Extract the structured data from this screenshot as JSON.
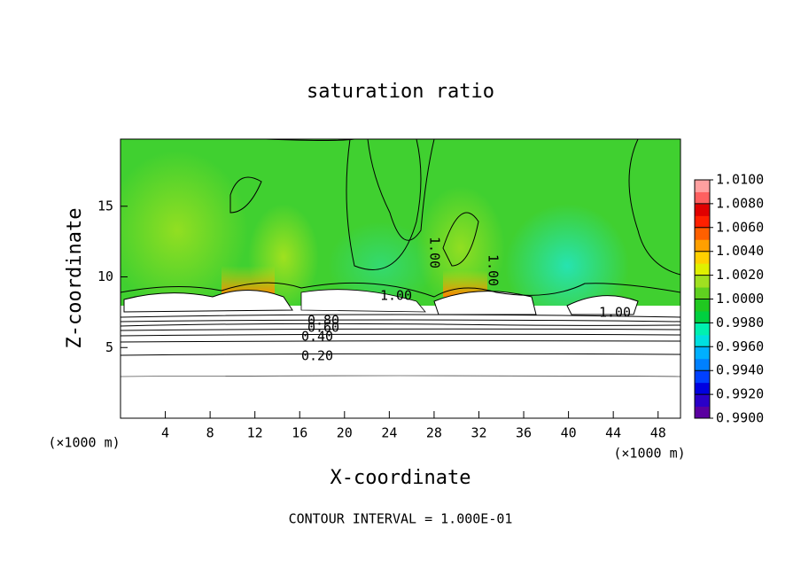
{
  "chart_data": {
    "type": "contour",
    "title": "saturation ratio",
    "x_label": "X-coordinate",
    "y_label": "Z-coordinate",
    "x_unit_label": "(×1000 m)",
    "x_unit_label_right": "(×1000 m)",
    "footer": "CONTOUR INTERVAL = 1.000E-01",
    "xlim": [
      0,
      50
    ],
    "xticks": [
      4,
      8,
      12,
      16,
      20,
      24,
      28,
      32,
      36,
      40,
      44,
      48
    ],
    "ylim": [
      0,
      19.75
    ],
    "yticks": [
      5,
      10,
      15
    ],
    "contour_labels": [
      "1.00",
      "1.00",
      "1.00",
      "1.00",
      "0.80",
      "0.60",
      "0.40",
      "0.20"
    ],
    "colorbar": {
      "lim": [
        0.99,
        1.01
      ],
      "ticks": [
        {
          "value": 0.99,
          "label": "0.9900"
        },
        {
          "value": 0.992,
          "label": "0.9920"
        },
        {
          "value": 0.994,
          "label": "0.9940"
        },
        {
          "value": 0.996,
          "label": "0.9960"
        },
        {
          "value": 0.998,
          "label": "0.9980"
        },
        {
          "value": 1.0,
          "label": "1.0000"
        },
        {
          "value": 1.002,
          "label": "1.0020"
        },
        {
          "value": 1.004,
          "label": "1.0040"
        },
        {
          "value": 1.006,
          "label": "1.0060"
        },
        {
          "value": 1.008,
          "label": "1.0080"
        },
        {
          "value": 1.01,
          "label": "1.0100"
        }
      ],
      "colors": [
        "#5a00a0",
        "#2a00c8",
        "#0000e0",
        "#0040ff",
        "#0080ff",
        "#00b0ff",
        "#00e0e0",
        "#00f0b0",
        "#00d040",
        "#20c820",
        "#60d020",
        "#a0e020",
        "#e0f000",
        "#ffd000",
        "#ffa000",
        "#ff6000",
        "#ff2000",
        "#e00000",
        "#ff6060",
        "#ffa0a0"
      ]
    }
  }
}
